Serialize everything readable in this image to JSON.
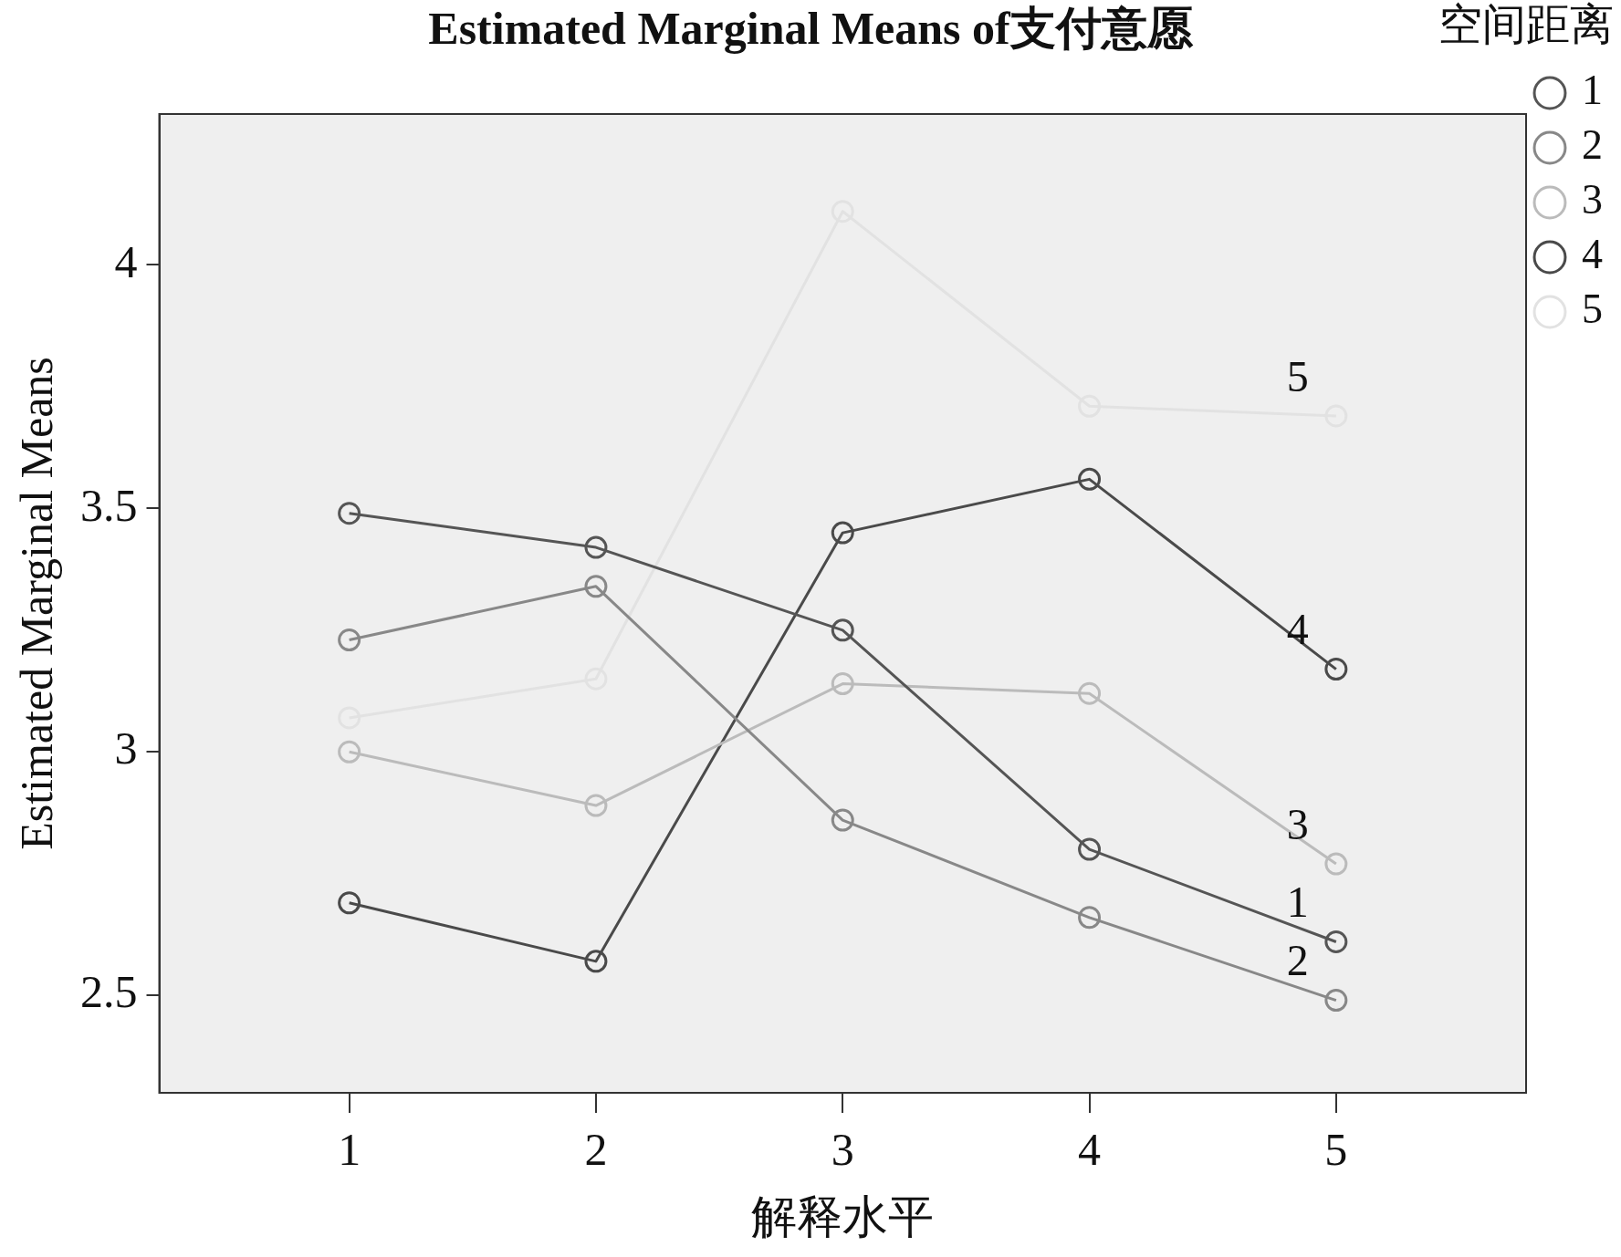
{
  "chart_data": {
    "type": "line",
    "title": "Estimated Marginal Means of支付意愿",
    "xlabel": "解释水平",
    "ylabel": "Estimated Marginal Means",
    "legend_title": "空间距离",
    "legend": "right",
    "marker": "circle",
    "grid": false,
    "x": [
      1,
      2,
      3,
      4,
      5
    ],
    "xlim": [
      0.23,
      5.77
    ],
    "xticks": [
      1,
      2,
      3,
      4,
      5
    ],
    "ylim": [
      2.3,
      4.31
    ],
    "yticks": [
      2.5,
      3,
      3.5,
      4
    ],
    "series": [
      {
        "name": "1",
        "color": "#555555",
        "values": [
          3.49,
          3.42,
          3.25,
          2.8,
          2.61
        ]
      },
      {
        "name": "2",
        "color": "#888888",
        "values": [
          3.23,
          3.34,
          2.86,
          2.66,
          2.49
        ]
      },
      {
        "name": "3",
        "color": "#bbbbbb",
        "values": [
          3.0,
          2.89,
          3.14,
          3.12,
          2.77
        ]
      },
      {
        "name": "4",
        "color": "#4a4a4a",
        "values": [
          2.69,
          2.57,
          3.45,
          3.56,
          3.17
        ]
      },
      {
        "name": "5",
        "color": "#e2e2e2",
        "values": [
          3.07,
          3.15,
          4.11,
          3.71,
          3.69
        ]
      }
    ]
  }
}
